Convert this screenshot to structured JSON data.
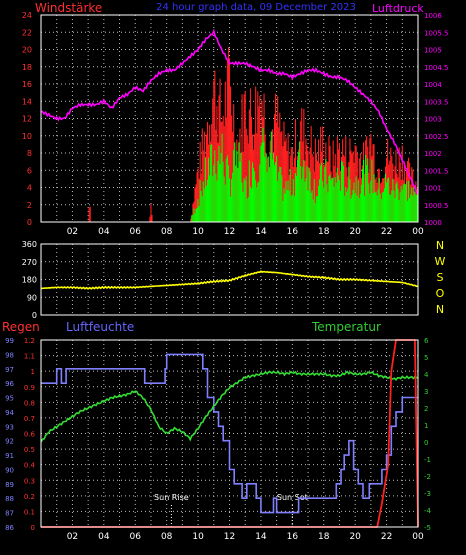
{
  "chart_data": [
    {
      "type": "line",
      "title": "24 hour graph data, 09 December 2023",
      "left_label": "Windstärke",
      "right_label": "Luftdruck",
      "x_ticks": [
        "02",
        "04",
        "06",
        "08",
        "10",
        "12",
        "14",
        "16",
        "18",
        "20",
        "22",
        "00"
      ],
      "y_left_ticks": [
        "0",
        "2",
        "4",
        "6",
        "8",
        "10",
        "12",
        "14",
        "16",
        "18",
        "20",
        "22",
        "24"
      ],
      "y_right_ticks": [
        "1000",
        "1000.5",
        "1001",
        "1001.5",
        "1002",
        "1002.5",
        "1003",
        "1003.5",
        "1004",
        "1004.5",
        "1005",
        "1005.5",
        "1006"
      ],
      "ylim_left": [
        0,
        24
      ],
      "ylim_right": [
        1000,
        1006
      ],
      "colors": {
        "gust": "#ff2020",
        "wind": "#00ff00",
        "pressure": "#ff00ff",
        "left_axis": "#ff3030",
        "right_axis": "#ff00ff"
      },
      "pressure": {
        "x": [
          0,
          0.5,
          1,
          1.5,
          2,
          2.5,
          3,
          3.5,
          4,
          4.5,
          5,
          5.5,
          6,
          6.5,
          7,
          7.5,
          8,
          8.5,
          9,
          9.5,
          10,
          10.5,
          11,
          11.5,
          12,
          12.5,
          13,
          13.5,
          14,
          14.5,
          15,
          15.5,
          16,
          16.5,
          17,
          17.5,
          18,
          18.5,
          19,
          19.5,
          20,
          20.5,
          21,
          21.5,
          22,
          22.5,
          23,
          23.5,
          24
        ],
        "values": [
          1003.2,
          1003.1,
          1003.0,
          1003.0,
          1003.3,
          1003.4,
          1003.4,
          1003.4,
          1003.5,
          1003.3,
          1003.6,
          1003.7,
          1003.9,
          1003.8,
          1004.1,
          1004.3,
          1004.4,
          1004.4,
          1004.6,
          1004.8,
          1005.0,
          1005.3,
          1005.5,
          1005.0,
          1004.6,
          1004.6,
          1004.6,
          1004.5,
          1004.4,
          1004.4,
          1004.3,
          1004.3,
          1004.2,
          1004.3,
          1004.4,
          1004.4,
          1004.3,
          1004.2,
          1004.2,
          1004.1,
          1003.9,
          1003.7,
          1003.5,
          1003.2,
          1002.7,
          1002.3,
          1001.8,
          1001.3,
          1000.8
        ]
      },
      "wind_mean": {
        "x": [
          0,
          3,
          9.5,
          10,
          10.5,
          11,
          11.5,
          12,
          12.5,
          13,
          13.5,
          14,
          14.5,
          15,
          15.5,
          16,
          16.5,
          17,
          17.5,
          18,
          18.5,
          19,
          19.5,
          20,
          20.5,
          21,
          21.5,
          22,
          22.5,
          23,
          23.5,
          24
        ],
        "values": [
          0,
          0,
          0,
          3,
          6,
          8,
          9,
          5,
          10,
          4,
          8,
          8,
          11,
          6,
          4,
          5,
          8,
          7,
          4,
          6,
          5,
          6,
          5,
          5,
          6,
          6,
          4,
          5,
          4,
          5,
          4,
          3
        ]
      },
      "wind_gust": {
        "x": [
          0,
          3,
          3.1,
          3.2,
          6.9,
          7,
          7.1,
          9.5,
          10,
          10.5,
          11,
          11.5,
          12,
          12.5,
          13,
          13.5,
          14,
          14.5,
          15,
          15.5,
          16,
          16.5,
          17,
          17.5,
          18,
          18.5,
          19,
          19.5,
          20,
          20.5,
          21,
          21.5,
          22,
          22.5,
          23,
          23.5,
          24
        ],
        "values": [
          0,
          0,
          3,
          0,
          0,
          3,
          0,
          0,
          7,
          12,
          18,
          14,
          19,
          10,
          16,
          14,
          18,
          11,
          14,
          10,
          9,
          13,
          11,
          9,
          11,
          8,
          10,
          9,
          10,
          8,
          11,
          7,
          9,
          8,
          9,
          6,
          5
        ]
      }
    },
    {
      "type": "line",
      "left_ticks": [
        "0",
        "90",
        "180",
        "270",
        "360"
      ],
      "right_labels": [
        "N",
        "W",
        "S",
        "O",
        "N"
      ],
      "ylim": [
        0,
        360
      ],
      "color": "#ffff00",
      "direction": {
        "x": [
          0,
          1,
          2,
          3,
          4,
          5,
          6,
          7,
          8,
          9,
          10,
          11,
          12,
          13,
          14,
          15,
          16,
          17,
          18,
          19,
          20,
          21,
          22,
          23,
          24
        ],
        "values": [
          135,
          140,
          140,
          135,
          140,
          140,
          140,
          145,
          150,
          155,
          160,
          170,
          175,
          200,
          220,
          215,
          205,
          195,
          190,
          180,
          180,
          175,
          170,
          165,
          145
        ]
      }
    },
    {
      "type": "line",
      "left_label": "Regen",
      "mid_label": "Luftfeuchte",
      "right_label": "Temperatur",
      "rain_ticks": [
        "0",
        "0.1",
        "0.2",
        "0.3",
        "0.4",
        "0.5",
        "0.6",
        "0.7",
        "0.8",
        "0.9",
        "1",
        "1.1",
        "1.2"
      ],
      "humidity_ticks": [
        "86",
        "87",
        "88",
        "89",
        "90",
        "91",
        "92",
        "93",
        "94",
        "95",
        "96",
        "97",
        "98",
        "99"
      ],
      "temperature_ticks": [
        "-5",
        "-4",
        "-3",
        "-2",
        "-1",
        "0",
        "1",
        "2",
        "3",
        "4",
        "5",
        "6"
      ],
      "annotations": [
        {
          "label": "Sun Rise",
          "x": 8.3
        },
        {
          "label": "Sun Set",
          "x": 16.0
        }
      ],
      "colors": {
        "rain": "#ff2020",
        "humidity": "#8080ff",
        "temperature": "#33dd33"
      },
      "humidity": {
        "x": [
          0,
          0.9,
          1,
          1.3,
          1.6,
          6.5,
          6.6,
          7.5,
          7.9,
          8,
          10,
          10.3,
          10.6,
          11,
          11.3,
          11.6,
          12,
          12.3,
          12.8,
          13.1,
          13.7,
          14,
          14.8,
          15,
          16.2,
          16.4,
          17.5,
          18.4,
          18.8,
          19.1,
          19.3,
          19.6,
          19.9,
          20.2,
          20.5,
          20.9,
          21.3,
          21.7,
          22.0,
          22.3,
          22.6,
          23.0,
          23.4,
          24
        ],
        "values": [
          96,
          96,
          97,
          96,
          97,
          97,
          96,
          96,
          97,
          98,
          98,
          97,
          95,
          94,
          93,
          92,
          90,
          89,
          88,
          89,
          88,
          87,
          88,
          87,
          87,
          88,
          88,
          88,
          89,
          90,
          91,
          92,
          90,
          89,
          88,
          89,
          89,
          90,
          91,
          93,
          94,
          95,
          95,
          95
        ]
      },
      "temperature": {
        "x": [
          0,
          0.5,
          1,
          1.5,
          2,
          2.5,
          3,
          3.5,
          4,
          4.5,
          5,
          5.5,
          6,
          6.5,
          7,
          7.5,
          8,
          8.5,
          9,
          9.5,
          10,
          10.5,
          11,
          11.5,
          12,
          12.5,
          13,
          13.5,
          14,
          14.5,
          15,
          15.5,
          16,
          16.5,
          17,
          17.5,
          18,
          18.5,
          19,
          19.5,
          20,
          20.5,
          21,
          21.5,
          22,
          22.5,
          23,
          23.5,
          24
        ],
        "values": [
          0,
          0.6,
          0.9,
          1.2,
          1.5,
          1.8,
          2.0,
          2.2,
          2.4,
          2.6,
          2.7,
          2.8,
          3.0,
          2.6,
          1.9,
          0.9,
          0.5,
          0.8,
          0.6,
          0.2,
          0.8,
          1.5,
          2.1,
          2.7,
          3.2,
          3.5,
          3.8,
          3.9,
          4.0,
          4.1,
          4.1,
          4.0,
          4.1,
          4.0,
          4.0,
          4.0,
          4.0,
          3.9,
          3.9,
          4.1,
          4.0,
          4.0,
          4.1,
          3.9,
          3.8,
          3.7,
          3.8,
          3.8,
          3.8
        ]
      },
      "rain": {
        "x": [
          0,
          21.4,
          21.7,
          22.1,
          22.3,
          22.6,
          23.8,
          24
        ],
        "values": [
          0,
          0,
          0.15,
          0.4,
          1.0,
          1.2,
          1.2,
          0
        ]
      }
    }
  ]
}
